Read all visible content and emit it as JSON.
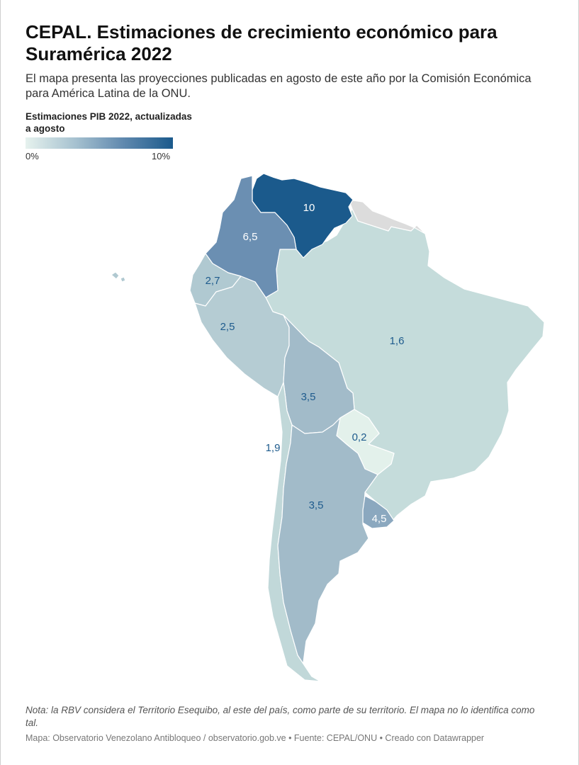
{
  "title": "CEPAL. Estimaciones de crecimiento económico para Suramérica 2022",
  "subtitle": "El mapa presenta las proyecciones publicadas en agosto de este año por la Comisión Económica para América Latina de la ONU.",
  "legend": {
    "title": "Estimaciones PIB 2022, actualizadas a agosto",
    "min_label": "0%",
    "max_label": "10%",
    "colors": [
      "#e6f2ee",
      "#a7c2d0",
      "#5f88ae",
      "#1b5a8c"
    ]
  },
  "countries": [
    {
      "id": "venezuela",
      "value": "10",
      "fill": "#1b5a8c",
      "text_color": "#ffffff"
    },
    {
      "id": "colombia",
      "value": "6,5",
      "fill": "#6b8fb2",
      "text_color": "#ffffff"
    },
    {
      "id": "ecuador",
      "value": "2,7",
      "fill": "#b0c9d1",
      "text_color": "#1e5b8d"
    },
    {
      "id": "peru",
      "value": "2,5",
      "fill": "#b5ccd3",
      "text_color": "#1e5b8d"
    },
    {
      "id": "brasil",
      "value": "1,6",
      "fill": "#c5dcdb",
      "text_color": "#1e5b8d"
    },
    {
      "id": "bolivia",
      "value": "3,5",
      "fill": "#a2bbc9",
      "text_color": "#1e5b8d"
    },
    {
      "id": "paraguay",
      "value": "0,2",
      "fill": "#e3f1eb",
      "text_color": "#1e5b8d"
    },
    {
      "id": "chile",
      "value": "1,9",
      "fill": "#c1d8d9",
      "text_color": "#1e5b8d"
    },
    {
      "id": "argentina",
      "value": "3,5",
      "fill": "#a2bbc9",
      "text_color": "#1e5b8d"
    },
    {
      "id": "uruguay",
      "value": "4,5",
      "fill": "#8ba8bf",
      "text_color": "#ffffff"
    },
    {
      "id": "guyanas",
      "value": "",
      "fill": "#dcdcdc",
      "text_color": "#1e5b8d"
    }
  ],
  "note": "Nota: la RBV considera el Territorio Esequibo, al este del país, como parte de su territorio. El mapa no lo identifica como tal.",
  "footer": "Mapa: Observatorio Venezolano Antibloqueo / observatorio.gob.ve • Fuente: CEPAL/ONU • Creado con Datawrapper"
}
